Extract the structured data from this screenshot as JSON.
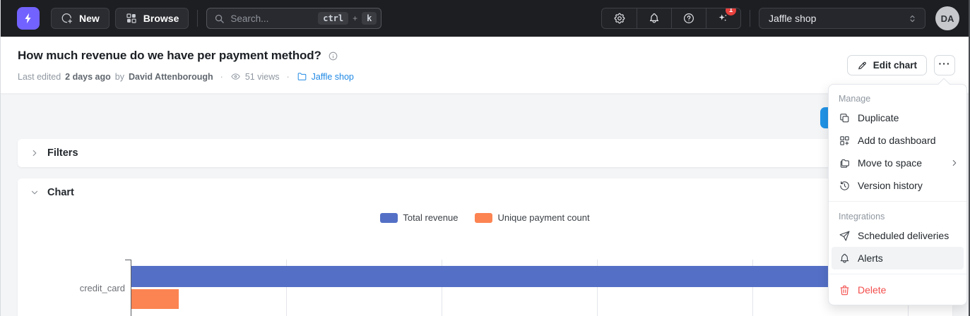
{
  "navbar": {
    "new_label": "New",
    "browse_label": "Browse",
    "search": {
      "placeholder": "Search...",
      "kbd_ctrl": "ctrl",
      "kbd_plus": "+",
      "kbd_k": "k"
    },
    "notification_badge": "1",
    "project_select_value": "Jaffle shop",
    "avatar_initials": "DA"
  },
  "header": {
    "title": "How much revenue do we have per payment method?",
    "meta": {
      "last_edited_prefix": "Last edited",
      "last_edited_time": "2 days ago",
      "by_label": "by",
      "author": "David Attenborough",
      "separator": "·",
      "views": "51 views",
      "space_name": "Jaffle shop"
    },
    "edit_chart_label": "Edit chart",
    "more_button_label": "···"
  },
  "panels": {
    "filters_label": "Filters",
    "chart_label": "Chart"
  },
  "menu": {
    "manage_section_label": "Manage",
    "integrations_section_label": "Integrations",
    "items": [
      "Duplicate",
      "Add to dashboard",
      "Move to space",
      "Version history",
      "Scheduled deliveries",
      "Alerts",
      "Delete"
    ],
    "highlighted_item": "Alerts",
    "danger_item": "Delete"
  },
  "chart_data": {
    "type": "bar",
    "orientation": "horizontal",
    "categories": [
      "credit_card"
    ],
    "series": [
      {
        "name": "Total revenue",
        "color": "#5470c6",
        "relative_length": 1.0,
        "approx_gridline_units": 5.2
      },
      {
        "name": "Unique payment count",
        "color": "#fc8452",
        "relative_length": 0.058,
        "approx_gridline_units": 0.3
      }
    ],
    "legend_position": "top-center",
    "grid": true,
    "axis_value_labels_visible": false,
    "note": "x-axis numeric labels are cut off at the bottom edge of the screenshot; the Total revenue bar extends under the open context menu beyond the visible plot"
  },
  "colors": {
    "brand_purple": "#7262ff",
    "link_blue": "#2089e5",
    "badge_red": "#e8403d",
    "danger_red": "#f34e4c",
    "bar_blue": "#5470c6",
    "bar_orange": "#fc8452",
    "menu_highlight": "#f1f3f5"
  },
  "icons": {
    "logo": "lightning-bolt",
    "new": "circle-plus",
    "browse": "layout-grid",
    "search": "magnifier",
    "settings": "gear",
    "notifications": "bell",
    "help": "question-circle",
    "ai": "sparkles",
    "project": "chevron-selector",
    "title_info": "info-circle",
    "views": "eye",
    "space": "folder",
    "edit": "pencil",
    "more": "ellipsis",
    "filters_toggle": "chevron-right",
    "chart_toggle": "chevron-down",
    "duplicate": "copy",
    "add_to_dashboard": "grid-plus",
    "move_to_space": "folders",
    "version_history": "history-clock",
    "scheduled_deliveries": "paper-plane",
    "alerts": "bell",
    "delete": "trash",
    "submenu": "chevron-right"
  }
}
